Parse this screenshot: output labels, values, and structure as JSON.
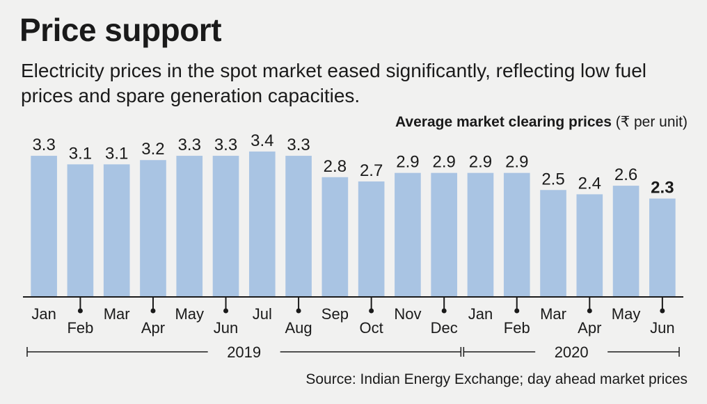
{
  "title": "Price support",
  "subtitle": "Electricity prices in the spot market eased significantly, reflecting low fuel prices and spare generation capacities.",
  "chart_label_bold": "Average market clearing prices",
  "chart_label_unit": "(₹ per unit)",
  "source": "Source: Indian Energy Exchange; day ahead market prices",
  "colors": {
    "bar": "#a9c4e3",
    "background": "#f1f1f0",
    "text": "#1a1a1a"
  },
  "chart_data": {
    "type": "bar",
    "title": "Average market clearing prices",
    "ylabel": "₹ per unit",
    "ylim": [
      0,
      3.5
    ],
    "categories": [
      "Jan",
      "Feb",
      "Mar",
      "Apr",
      "May",
      "Jun",
      "Jul",
      "Aug",
      "Sep",
      "Oct",
      "Nov",
      "Dec",
      "Jan",
      "Feb",
      "Mar",
      "Apr",
      "May",
      "Jun"
    ],
    "values": [
      3.3,
      3.1,
      3.1,
      3.2,
      3.3,
      3.3,
      3.4,
      3.3,
      2.8,
      2.7,
      2.9,
      2.9,
      2.9,
      2.9,
      2.5,
      2.4,
      2.6,
      2.3
    ],
    "value_labels": [
      "3.3",
      "3.1",
      "3.1",
      "3.2",
      "3.3",
      "3.3",
      "3.4",
      "3.3",
      "2.8",
      "2.7",
      "2.9",
      "2.9",
      "2.9",
      "2.9",
      "2.5",
      "2.4",
      "2.6",
      "2.3"
    ],
    "highlight_index": 17,
    "years": [
      {
        "label": "2019",
        "start_index": 0,
        "end_index": 11
      },
      {
        "label": "2020",
        "start_index": 12,
        "end_index": 17
      }
    ],
    "grid": false,
    "legend": "none"
  }
}
